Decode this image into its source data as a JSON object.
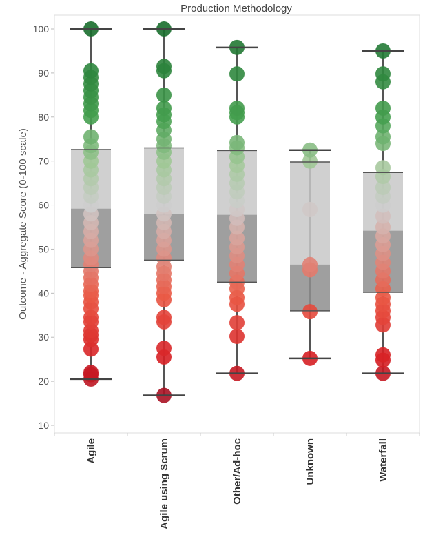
{
  "chart_data": {
    "type": "box",
    "title": "Production Methodology",
    "xlabel": "",
    "ylabel": "Outcome - Aggregate Score (0-100 scale)",
    "ylim": [
      9,
      103
    ],
    "yticks": [
      10,
      20,
      30,
      40,
      50,
      60,
      70,
      80,
      90,
      100
    ],
    "categories": [
      "Agile",
      "Agile using Scrum",
      "Other/Ad-hoc",
      "Unknown",
      "Waterfall"
    ],
    "boxes": [
      {
        "category": "Agile",
        "min": 20.5,
        "q1": 45.8,
        "median": 59.2,
        "q3": 72.6,
        "max": 100
      },
      {
        "category": "Agile using Scrum",
        "min": 16.8,
        "q1": 47.5,
        "median": 58.0,
        "q3": 73.0,
        "max": 100
      },
      {
        "category": "Other/Ad-hoc",
        "min": 21.8,
        "q1": 42.5,
        "median": 57.8,
        "q3": 72.4,
        "max": 95.8
      },
      {
        "category": "Unknown",
        "min": 25.2,
        "q1": 36.0,
        "median": 46.5,
        "q3": 69.8,
        "max": 72.5
      },
      {
        "category": "Waterfall",
        "min": 21.8,
        "q1": 40.2,
        "median": 54.2,
        "q3": 67.4,
        "max": 95.0
      }
    ],
    "points": [
      [
        20.5,
        21.5,
        22,
        27.3,
        29.5,
        30.5,
        31.5,
        33.5,
        34.5,
        36.5,
        38,
        39.5,
        40.5,
        42,
        43.5,
        45,
        46.5,
        48,
        50,
        52,
        54,
        56,
        58,
        60,
        62,
        64,
        66,
        68,
        70,
        72,
        73.5,
        75.5,
        80,
        81.5,
        83,
        84.5,
        86,
        87.5,
        89,
        90.5,
        100
      ],
      [
        16.8,
        25.5,
        27.5,
        33.5,
        34.5,
        38.5,
        40,
        41.5,
        43,
        44.5,
        46,
        48,
        50,
        52,
        54,
        56,
        58,
        60,
        62,
        64,
        66,
        68,
        70,
        72,
        73.5,
        75,
        77,
        79,
        80.5,
        82,
        85,
        90.5,
        91.5,
        100
      ],
      [
        21.8,
        30.2,
        33.3,
        37.5,
        39,
        41,
        42.5,
        44.5,
        46.5,
        48.5,
        50.5,
        52.5,
        55,
        57,
        59,
        61,
        63,
        65,
        67,
        69,
        71,
        73,
        74.2,
        80,
        81,
        82,
        89.8,
        95.8
      ],
      [
        25.2,
        35.8,
        45.3,
        46.5,
        59,
        70,
        72.5
      ],
      [
        21.8,
        24.8,
        26,
        32.8,
        34.5,
        36,
        37.5,
        39,
        41,
        43,
        45,
        47,
        49,
        51,
        53,
        55,
        57.5,
        60,
        62,
        64,
        66.5,
        68.5,
        74,
        75.5,
        78,
        80,
        82,
        88,
        89.8,
        95
      ]
    ]
  }
}
